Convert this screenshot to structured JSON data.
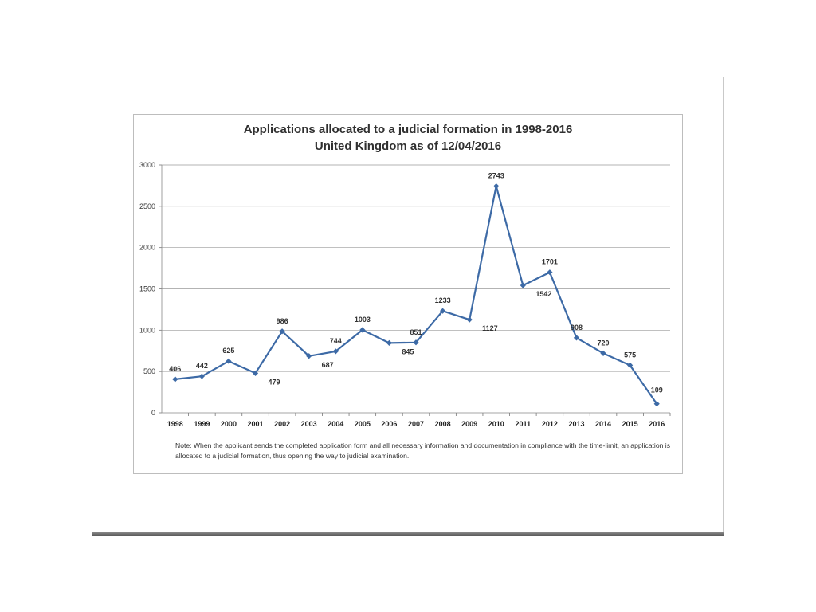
{
  "chart_data": {
    "type": "line",
    "title": "Applications allocated to a judicial formation in 1998-2016",
    "subtitle": "United Kingdom as of 12/04/2016",
    "categories": [
      "1998",
      "1999",
      "2000",
      "2001",
      "2002",
      "2003",
      "2004",
      "2005",
      "2006",
      "2007",
      "2008",
      "2009",
      "2010",
      "2011",
      "2012",
      "2013",
      "2014",
      "2015",
      "2016"
    ],
    "series": [
      {
        "values": [
          406,
          442,
          625,
          479,
          986,
          687,
          744,
          1003,
          845,
          851,
          1233,
          1127,
          2743,
          1542,
          1701,
          908,
          720,
          575,
          109
        ]
      }
    ],
    "ylim": [
      0,
      3000
    ],
    "yticks": [
      0,
      500,
      1000,
      1500,
      2000,
      2500,
      3000
    ],
    "grid": true,
    "legend": "none",
    "line_color": "#3d6aa6",
    "note": "Note: When the applicant sends the completed application form and all necessary information and documentation in compliance with the time-limit, an application is allocated to a judicial formation, thus opening the way to judicial examination."
  }
}
